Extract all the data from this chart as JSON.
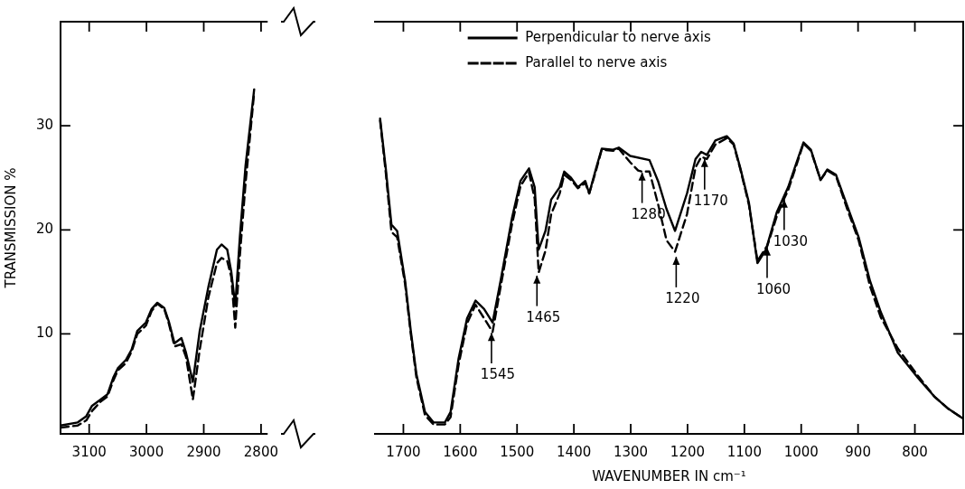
{
  "chart_data": [
    {
      "type": "line",
      "ylabel": "TRANSMISSION %",
      "xlim": [
        3150,
        2790
      ],
      "xticks": [
        3100,
        3000,
        2900,
        2800
      ],
      "ylim": [
        0.4,
        40
      ],
      "yticks": [
        10,
        20,
        30
      ],
      "marker": "none",
      "series": [
        {
          "color": "#000000",
          "line_style": "solid",
          "x": [
            3150,
            3120,
            3105,
            3095,
            3080,
            3068,
            3058,
            3050,
            3036,
            3026,
            3016,
            3001,
            2991,
            2981,
            2969,
            2961,
            2951,
            2939,
            2931,
            2919,
            2907,
            2892,
            2877,
            2869,
            2859,
            2852,
            2845,
            2837,
            2827,
            2812
          ],
          "values": [
            1.2,
            1.5,
            2.1,
            3.1,
            3.7,
            4.2,
            5.8,
            6.7,
            7.5,
            8.5,
            10.3,
            11.1,
            12.4,
            13.0,
            12.5,
            11.2,
            9.1,
            9.6,
            8.2,
            5.4,
            10.3,
            14.5,
            18.1,
            18.6,
            18.1,
            16.0,
            12.7,
            19.3,
            26.2,
            33.5
          ]
        },
        {
          "color": "#000000",
          "line_style": "dashed",
          "x": [
            3150,
            3120,
            3105,
            3095,
            3080,
            3068,
            3058,
            3050,
            3036,
            3026,
            3016,
            3001,
            2991,
            2981,
            2969,
            2961,
            2951,
            2939,
            2931,
            2919,
            2907,
            2892,
            2877,
            2869,
            2859,
            2852,
            2845,
            2837,
            2827,
            2812
          ],
          "values": [
            1.0,
            1.2,
            1.7,
            2.6,
            3.5,
            4.0,
            5.5,
            6.5,
            7.2,
            8.3,
            10.0,
            10.8,
            12.2,
            12.9,
            12.4,
            11.0,
            8.8,
            9.0,
            7.8,
            3.7,
            8.5,
            13.5,
            16.8,
            17.3,
            17.0,
            15.5,
            10.6,
            17.5,
            24.5,
            33.2
          ]
        }
      ]
    },
    {
      "type": "line",
      "xlabel": "WAVENUMBER IN cm⁻¹",
      "xlim": [
        1750,
        715
      ],
      "xticks": [
        1700,
        1600,
        1500,
        1400,
        1300,
        1200,
        1100,
        1000,
        900,
        800
      ],
      "ylim": [
        0.4,
        40
      ],
      "yticks": [
        10,
        20,
        30
      ],
      "tick_labels": "x",
      "legend": "top",
      "marker": "none",
      "annotations": [
        {
          "text": "1545",
          "x": 1545,
          "y": 10.2
        },
        {
          "text": "1465",
          "x": 1465,
          "y": 15.7
        },
        {
          "text": "1280",
          "x": 1280,
          "y": 25.6
        },
        {
          "text": "1220",
          "x": 1220,
          "y": 17.5
        },
        {
          "text": "1170",
          "x": 1170,
          "y": 26.9
        },
        {
          "text": "1060",
          "x": 1060,
          "y": 18.4
        },
        {
          "text": "1030",
          "x": 1030,
          "y": 23.0
        }
      ],
      "series": [
        {
          "name": "Perpendicular to nerve axis",
          "color": "#000000",
          "line_style": "solid",
          "x": [
            1741,
            1731,
            1721,
            1711,
            1697,
            1687,
            1677,
            1662,
            1647,
            1627,
            1617,
            1603,
            1588,
            1573,
            1558,
            1543,
            1529,
            1509,
            1494,
            1479,
            1469,
            1462,
            1450,
            1440,
            1425,
            1417,
            1405,
            1393,
            1380,
            1373,
            1361,
            1351,
            1331,
            1321,
            1301,
            1267,
            1252,
            1237,
            1222,
            1201,
            1186,
            1176,
            1166,
            1151,
            1131,
            1119,
            1107,
            1092,
            1077,
            1062,
            1043,
            1023,
            1008,
            996,
            983,
            966,
            954,
            939,
            919,
            899,
            879,
            860,
            830,
            795,
            766,
            741,
            716
          ],
          "values": [
            30.7,
            25.9,
            20.5,
            19.9,
            15.1,
            10.3,
            6.1,
            2.5,
            1.5,
            1.5,
            2.5,
            7.6,
            11.5,
            13.2,
            12.4,
            11.1,
            15.1,
            21.1,
            24.7,
            25.9,
            24.1,
            18.1,
            19.9,
            22.9,
            24.1,
            25.6,
            25.0,
            24.1,
            24.7,
            23.5,
            25.9,
            27.8,
            27.7,
            27.9,
            27.1,
            26.7,
            24.7,
            22.0,
            19.9,
            23.5,
            26.8,
            27.5,
            27.2,
            28.6,
            29.0,
            28.3,
            25.9,
            22.6,
            16.8,
            18.1,
            21.7,
            24.1,
            26.5,
            28.4,
            27.7,
            24.8,
            25.8,
            25.3,
            22.3,
            19.3,
            15.1,
            12.1,
            8.2,
            5.8,
            4.0,
            2.8,
            1.9
          ]
        },
        {
          "name": "Parallel to nerve axis",
          "color": "#000000",
          "line_style": "dashed",
          "x": [
            1741,
            1731,
            1721,
            1711,
            1697,
            1687,
            1677,
            1662,
            1647,
            1627,
            1617,
            1603,
            1588,
            1573,
            1558,
            1543,
            1529,
            1509,
            1494,
            1479,
            1469,
            1462,
            1450,
            1440,
            1425,
            1417,
            1405,
            1393,
            1380,
            1373,
            1361,
            1351,
            1331,
            1321,
            1301,
            1287,
            1280,
            1267,
            1252,
            1237,
            1222,
            1201,
            1186,
            1176,
            1170,
            1166,
            1151,
            1131,
            1119,
            1107,
            1092,
            1077,
            1062,
            1060,
            1043,
            1030,
            1023,
            1008,
            996,
            983,
            966,
            954,
            939,
            919,
            899,
            879,
            860,
            830,
            795,
            766,
            741,
            716
          ],
          "values": [
            30.5,
            25.5,
            19.8,
            19.3,
            14.8,
            10.0,
            5.8,
            2.2,
            1.3,
            1.3,
            2.0,
            7.0,
            11.0,
            12.8,
            11.5,
            10.2,
            14.5,
            20.5,
            24.2,
            25.5,
            23.0,
            15.9,
            18.0,
            21.5,
            23.5,
            25.3,
            24.8,
            24.0,
            24.5,
            23.5,
            25.7,
            27.7,
            27.6,
            27.8,
            26.5,
            25.7,
            25.6,
            25.6,
            22.5,
            19.0,
            17.9,
            21.5,
            26.0,
            27.0,
            26.9,
            26.8,
            28.2,
            28.8,
            28.2,
            25.8,
            22.4,
            17.0,
            18.3,
            18.4,
            21.3,
            23.0,
            23.8,
            26.3,
            28.3,
            27.6,
            24.8,
            25.7,
            25.2,
            22.0,
            19.0,
            14.6,
            11.6,
            8.6,
            6.0,
            4.0,
            2.8,
            1.9
          ]
        }
      ]
    }
  ]
}
